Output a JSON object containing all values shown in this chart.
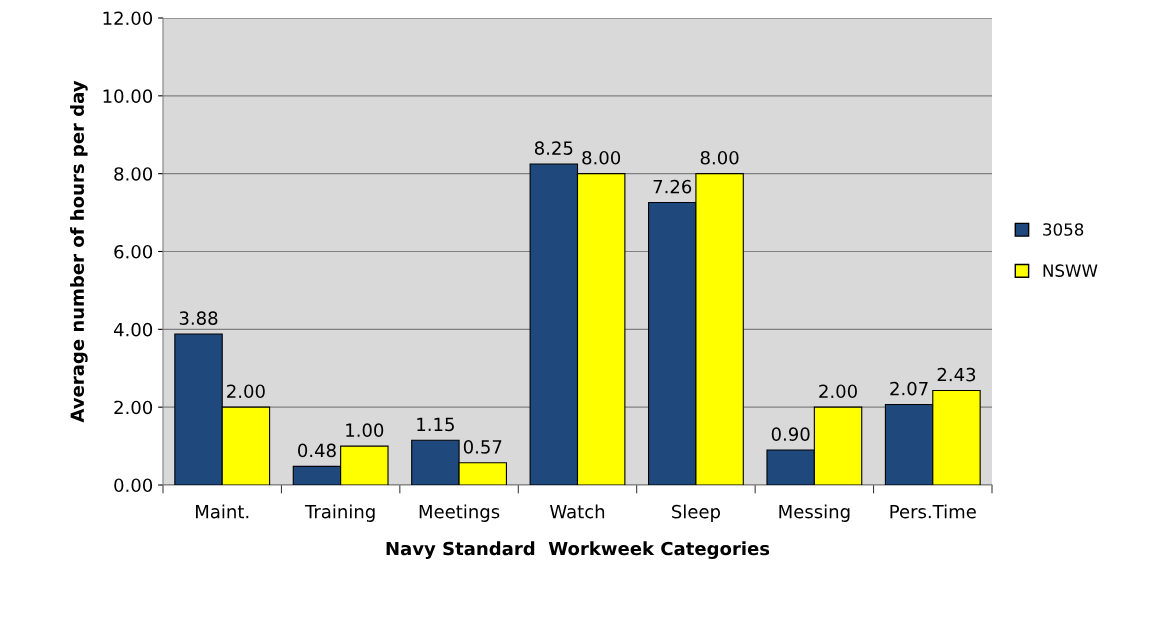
{
  "chart_data": {
    "type": "bar",
    "xlabel": "Navy Standard  Workweek Categories",
    "ylabel": "Average number of hours per day",
    "categories": [
      "Maint.",
      "Training",
      "Meetings",
      "Watch",
      "Sleep",
      "Messing",
      "Pers.Time"
    ],
    "series": [
      {
        "name": "3058",
        "color": "#1f497d",
        "values": [
          3.88,
          0.48,
          1.15,
          8.25,
          7.26,
          0.9,
          2.07
        ],
        "value_labels": [
          "3.88",
          "0.48",
          "1.15",
          "8.25",
          "7.26",
          "0.90",
          "2.07"
        ]
      },
      {
        "name": "NSWW",
        "color": "#ffff00",
        "values": [
          2.0,
          1.0,
          0.57,
          8.0,
          8.0,
          2.0,
          2.43
        ],
        "value_labels": [
          "2.00",
          "1.00",
          "0.57",
          "8.00",
          "8.00",
          "2.00",
          "2.43"
        ]
      }
    ],
    "ylim": [
      0,
      12
    ],
    "yticks": [
      {
        "value": 0,
        "label": "0.00"
      },
      {
        "value": 2,
        "label": "2.00"
      },
      {
        "value": 4,
        "label": "4.00"
      },
      {
        "value": 6,
        "label": "6.00"
      },
      {
        "value": 8,
        "label": "8.00"
      },
      {
        "value": 10,
        "label": "10.00"
      },
      {
        "value": 12,
        "label": "12.00"
      }
    ],
    "grid": "y",
    "legend": "right"
  }
}
